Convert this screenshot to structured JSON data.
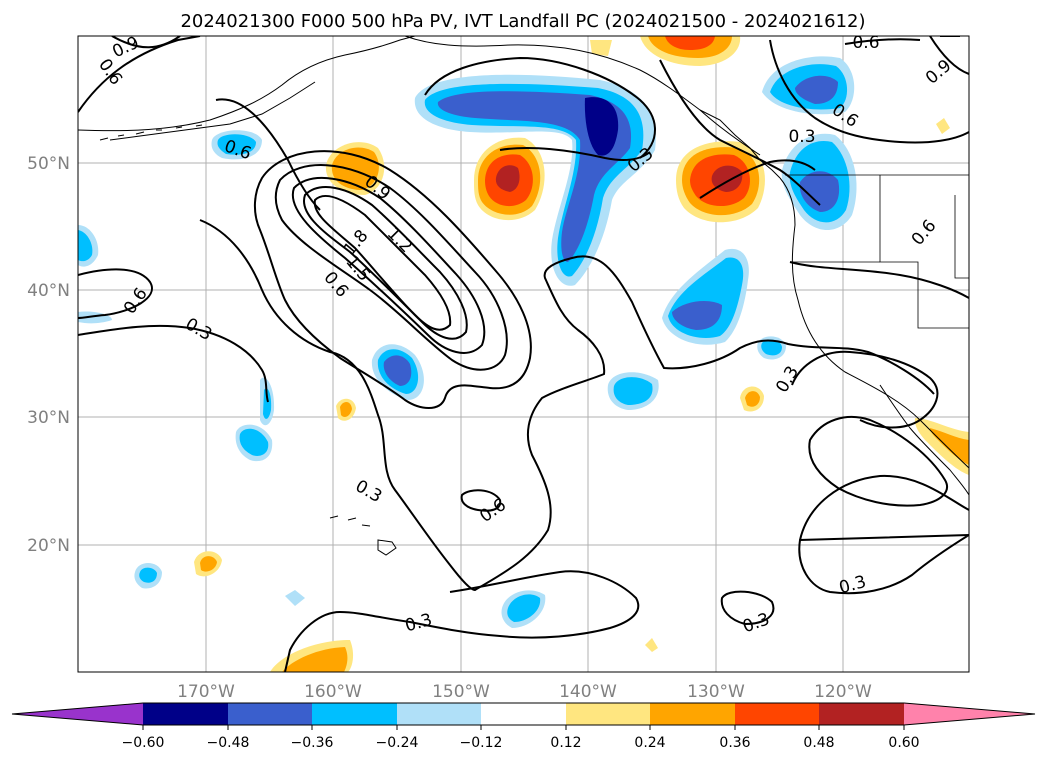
{
  "title": "2024021300 F000 500 hPa PV, IVT Landfall PC (2024021500 - 2024021612)",
  "map": {
    "lon_labels": [
      "170°W",
      "160°W",
      "150°W",
      "140°W",
      "130°W",
      "120°W"
    ],
    "lat_labels": [
      "50°N",
      "40°N",
      "30°N",
      "20°N"
    ],
    "contour_labels": [
      "0.9",
      "0.6",
      "0.6",
      "0.9",
      "1.2",
      "1.8",
      "1.5",
      "0.6",
      "0.6",
      "0.3",
      "0.3",
      "0.3",
      "0.6",
      "0.9",
      "0.6",
      "0.3",
      "0.6",
      "0.3",
      "0.6",
      "0.3",
      "0.3",
      "0.3"
    ],
    "gridlines": true,
    "colors": {
      "neg_060": "#9933cc",
      "neg_048": "#000088",
      "neg_036": "#3a5fcd",
      "neg_024": "#00bfff",
      "neg_012": "#b0e0f8",
      "pos_012": "#ffe680",
      "pos_024": "#ffa500",
      "pos_036": "#ff4500",
      "pos_048": "#b22222",
      "pos_060": "#ff82ab"
    }
  },
  "colorbar": {
    "ticks": [
      "−0.60",
      "−0.48",
      "−0.36",
      "−0.24",
      "−0.12",
      "0.12",
      "0.24",
      "0.36",
      "0.48",
      "0.60"
    ],
    "extend": "both"
  }
}
